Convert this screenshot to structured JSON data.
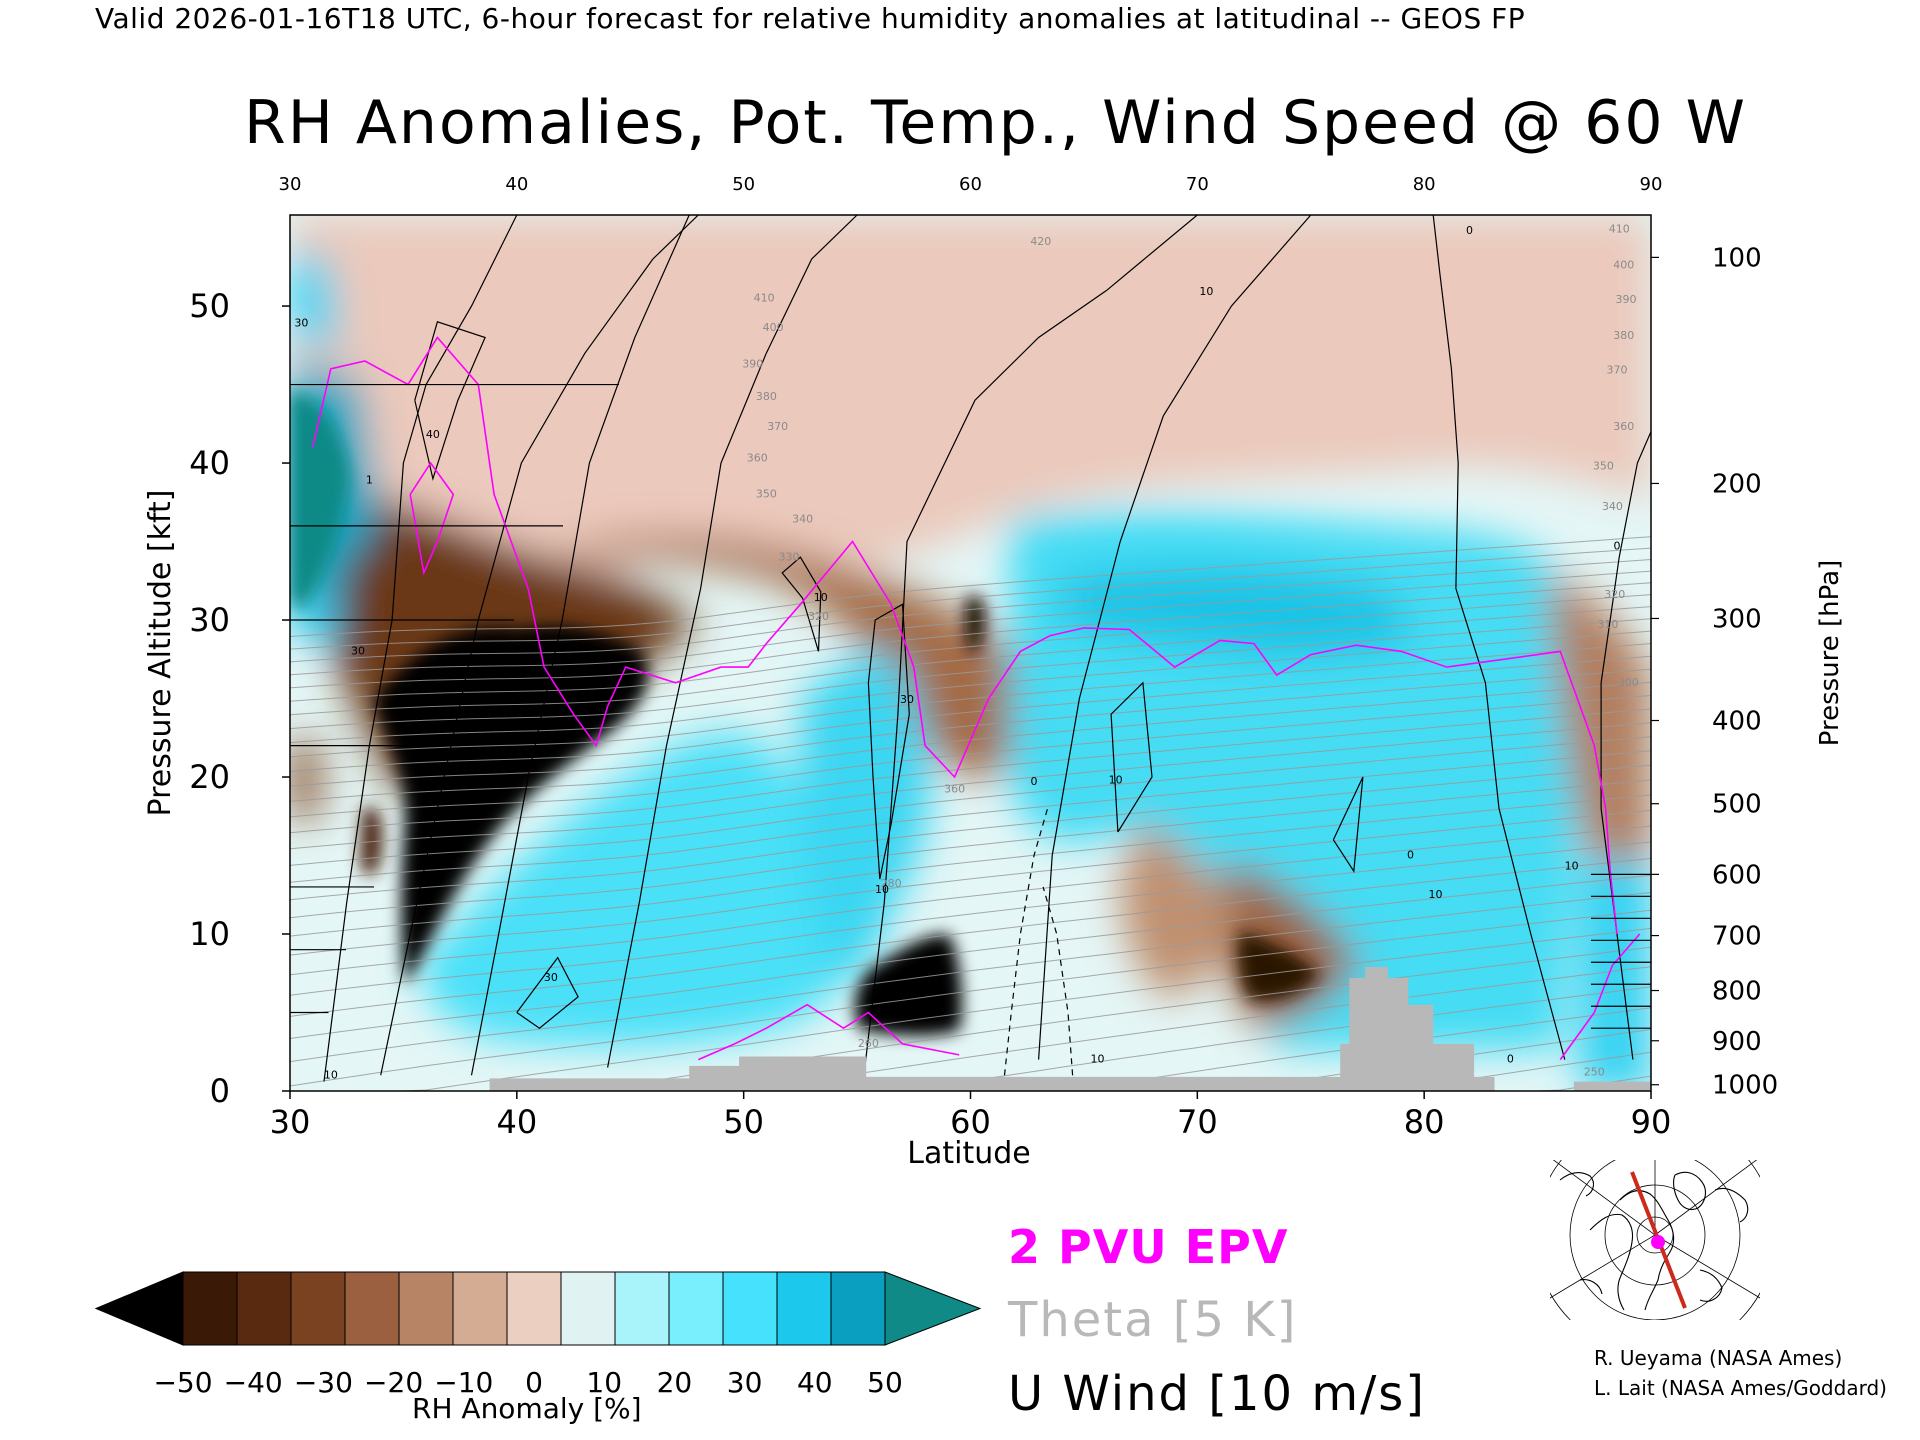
{
  "header": {
    "valid_line": "Valid 2026-01-16T18 UTC, 6-hour forecast for relative humidity anomalies at latitudinal -- GEOS FP",
    "title": "RH Anomalies, Pot. Temp., Wind Speed @ 60 W"
  },
  "chart_data": {
    "type": "heatmap",
    "title": "RH Anomalies, Pot. Temp., Wind Speed @ 60 W",
    "xlabel": "Latitude",
    "ylabel": "Pressure Altitude [kft]",
    "y2label": "Pressure [hPa]",
    "xlim": [
      30,
      90
    ],
    "ylim": [
      0,
      55.8
    ],
    "x_ticks": [
      30,
      40,
      50,
      60,
      70,
      80,
      90
    ],
    "x_top_ticks": [
      30,
      40,
      50,
      60,
      70,
      80,
      90
    ],
    "y_ticks": [
      0,
      10,
      20,
      30,
      40,
      50
    ],
    "pressure_ticks": [
      {
        "hpa": 100,
        "kft": 53.1
      },
      {
        "hpa": 200,
        "kft": 38.7
      },
      {
        "hpa": 300,
        "kft": 30.1
      },
      {
        "hpa": 400,
        "kft": 23.6
      },
      {
        "hpa": 500,
        "kft": 18.3
      },
      {
        "hpa": 600,
        "kft": 13.8
      },
      {
        "hpa": 700,
        "kft": 9.9
      },
      {
        "hpa": 800,
        "kft": 6.4
      },
      {
        "hpa": 900,
        "kft": 3.2
      },
      {
        "hpa": 1000,
        "kft": 0.4
      }
    ],
    "theta_labels": [
      {
        "text": "420",
        "lat": 63.1,
        "kft": 53.9
      },
      {
        "text": "410",
        "lat": 50.9,
        "kft": 50.3
      },
      {
        "text": "400",
        "lat": 51.3,
        "kft": 48.4
      },
      {
        "text": "390",
        "lat": 50.4,
        "kft": 46.1
      },
      {
        "text": "380",
        "lat": 51.0,
        "kft": 44.0
      },
      {
        "text": "370",
        "lat": 51.5,
        "kft": 42.1
      },
      {
        "text": "360",
        "lat": 50.6,
        "kft": 40.1
      },
      {
        "text": "350",
        "lat": 51.0,
        "kft": 37.8
      },
      {
        "text": "340",
        "lat": 52.6,
        "kft": 36.2
      },
      {
        "text": "330",
        "lat": 52.0,
        "kft": 33.8
      },
      {
        "text": "320",
        "lat": 53.3,
        "kft": 30.0
      },
      {
        "text": "410",
        "lat": 88.6,
        "kft": 54.7
      },
      {
        "text": "400",
        "lat": 88.8,
        "kft": 52.4
      },
      {
        "text": "390",
        "lat": 88.9,
        "kft": 50.2
      },
      {
        "text": "380",
        "lat": 88.8,
        "kft": 47.9
      },
      {
        "text": "370",
        "lat": 88.5,
        "kft": 45.7
      },
      {
        "text": "360",
        "lat": 88.8,
        "kft": 42.1
      },
      {
        "text": "350",
        "lat": 87.9,
        "kft": 39.6
      },
      {
        "text": "340",
        "lat": 88.3,
        "kft": 37.0
      },
      {
        "text": "320",
        "lat": 88.4,
        "kft": 31.4
      },
      {
        "text": "310",
        "lat": 88.1,
        "kft": 29.5
      },
      {
        "text": "300",
        "lat": 89.0,
        "kft": 25.8
      },
      {
        "text": "360",
        "lat": 59.3,
        "kft": 19.0
      },
      {
        "text": "280",
        "lat": 56.5,
        "kft": 13.0
      },
      {
        "text": "260",
        "lat": 55.5,
        "kft": 2.8
      },
      {
        "text": "250",
        "lat": 87.5,
        "kft": 1.0
      }
    ],
    "uwind_labels": [
      {
        "text": "0",
        "lat": 82.0,
        "kft": 54.6
      },
      {
        "text": "10",
        "lat": 70.4,
        "kft": 50.7
      },
      {
        "text": "40",
        "lat": 36.3,
        "kft": 41.6
      },
      {
        "text": "10",
        "lat": 53.4,
        "kft": 31.2
      },
      {
        "text": "30",
        "lat": 33.0,
        "kft": 27.8
      },
      {
        "text": "30",
        "lat": 57.2,
        "kft": 24.7
      },
      {
        "text": "0",
        "lat": 62.8,
        "kft": 19.5
      },
      {
        "text": "10",
        "lat": 66.4,
        "kft": 19.6
      },
      {
        "text": "0",
        "lat": 79.4,
        "kft": 14.8
      },
      {
        "text": "10",
        "lat": 80.5,
        "kft": 12.3
      },
      {
        "text": "10",
        "lat": 86.5,
        "kft": 14.1
      },
      {
        "text": "10",
        "lat": 56.1,
        "kft": 12.6
      },
      {
        "text": "30",
        "lat": 41.5,
        "kft": 7.0
      },
      {
        "text": "10",
        "lat": 31.8,
        "kft": 0.8
      },
      {
        "text": "10",
        "lat": 65.6,
        "kft": 1.8
      },
      {
        "text": "0",
        "lat": 83.8,
        "kft": 1.8
      },
      {
        "text": "0",
        "lat": 88.5,
        "kft": 34.5
      },
      {
        "text": "30",
        "lat": 30.5,
        "kft": 48.7
      },
      {
        "text": "1",
        "lat": 33.5,
        "kft": 38.7
      }
    ],
    "colorbar": {
      "label": "RH Anomaly [%]",
      "tick_labels": [
        "−50",
        "−40",
        "−30",
        "−20",
        "−10",
        "0",
        "10",
        "20",
        "30",
        "40",
        "50"
      ],
      "colors": [
        "#000000",
        "#3a1a07",
        "#5a2a10",
        "#7a4220",
        "#9a6040",
        "#b88466",
        "#d4ab93",
        "#ebd0c2",
        "#e1f2f3",
        "#a9f4fb",
        "#79eefc",
        "#46e1fc",
        "#1cc8ec",
        "#0a9ec0",
        "#0f8a86"
      ]
    }
  },
  "legend": {
    "epv": "2 PVU EPV",
    "theta": "Theta [5 K]",
    "uwind": "U Wind [10 m/s]"
  },
  "credits": {
    "line1": "R. Ueyama (NASA Ames)",
    "line2": "L. Lait (NASA Ames/Goddard)"
  },
  "colors": {
    "epv": "#ff00ff",
    "theta": "#b8b8b8",
    "uwind": "#000000",
    "terrain": "#b8b8b8",
    "track": "#cc2a1a"
  }
}
